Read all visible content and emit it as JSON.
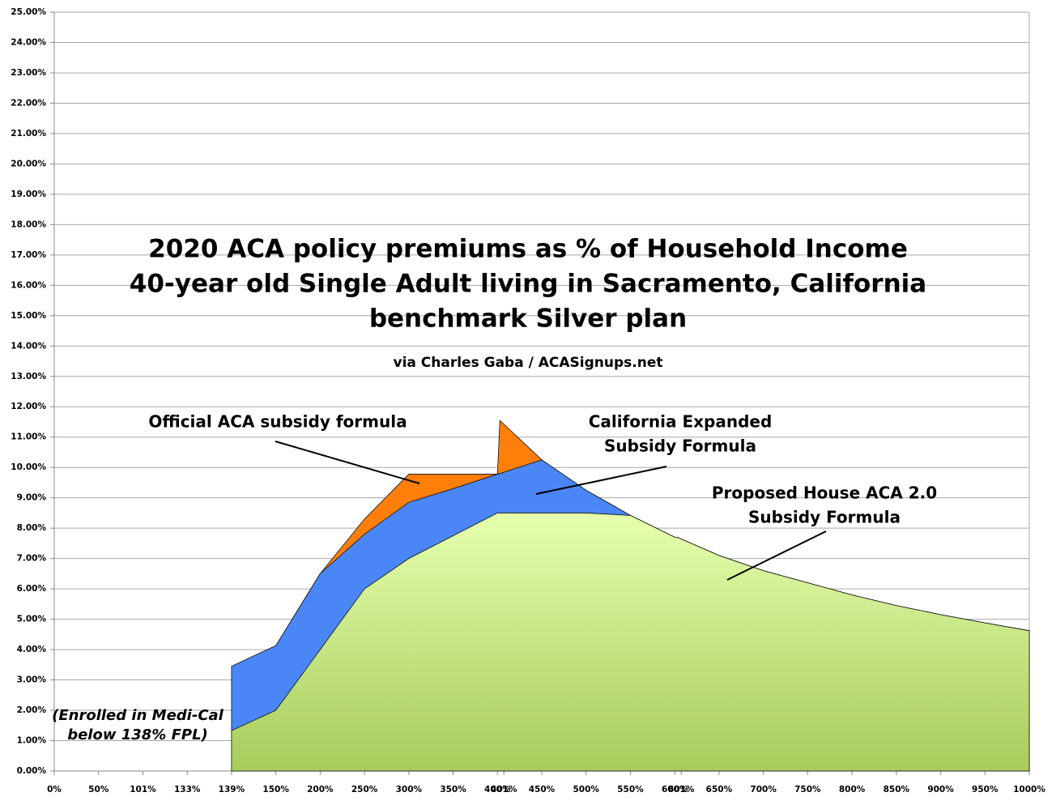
{
  "chart_data": {
    "type": "area",
    "title": [
      "2020 ACA policy premiums as % of Household Income",
      "40-year old Single Adult living in Sacramento, California",
      "benchmark Silver plan"
    ],
    "subtitle": "via Charles Gaba / ACASignups.net",
    "categories": [
      "0%",
      "50%",
      "101%",
      "133%",
      "139%",
      "150%",
      "200%",
      "250%",
      "300%",
      "350%",
      "400%",
      "401%",
      "450%",
      "500%",
      "550%",
      "600%",
      "601%",
      "650%",
      "700%",
      "750%",
      "800%",
      "850%",
      "900%",
      "950%",
      "1000%"
    ],
    "series": [
      {
        "name_lines": [
          "Official ACA subsidy formula"
        ],
        "color": "#ff7f0a",
        "values": [
          null,
          null,
          null,
          null,
          3.45,
          4.13,
          6.5,
          8.3,
          9.78,
          9.78,
          9.78,
          11.55,
          10.25,
          9.25,
          8.42,
          7.7,
          7.7,
          7.1,
          6.6,
          6.2,
          5.8,
          5.45,
          5.15,
          4.88,
          4.62
        ]
      },
      {
        "name_lines": [
          "California Expanded",
          "Subsidy Formula"
        ],
        "color": "#4a86f5",
        "values": [
          null,
          null,
          null,
          null,
          3.45,
          4.13,
          6.5,
          7.8,
          8.85,
          9.3,
          9.78,
          9.8,
          10.25,
          9.25,
          8.42,
          7.7,
          7.7,
          7.1,
          6.6,
          6.2,
          5.8,
          5.45,
          5.15,
          4.88,
          4.62
        ]
      },
      {
        "name_lines": [
          "Proposed House ACA 2.0",
          "Subsidy Formula"
        ],
        "color": "#b8dc72",
        "values": [
          null,
          null,
          null,
          null,
          1.33,
          2.0,
          4.0,
          6.0,
          7.0,
          7.75,
          8.5,
          8.5,
          8.5,
          8.5,
          8.42,
          7.7,
          7.7,
          7.1,
          6.6,
          6.2,
          5.8,
          5.45,
          5.15,
          4.88,
          4.62
        ]
      }
    ],
    "note_lines": [
      "(Enrolled in Medi-Cal",
      "below 138% FPL)"
    ],
    "ylim": [
      0,
      25
    ],
    "yticks": [
      {
        "value": 0,
        "label": "0.00%"
      },
      {
        "value": 1,
        "label": "1.00%"
      },
      {
        "value": 2,
        "label": "2.00%"
      },
      {
        "value": 3,
        "label": "3.00%"
      },
      {
        "value": 4,
        "label": "4.00%"
      },
      {
        "value": 5,
        "label": "5.00%"
      },
      {
        "value": 6,
        "label": "6.00%"
      },
      {
        "value": 7,
        "label": "7.00%"
      },
      {
        "value": 8,
        "label": "8.00%"
      },
      {
        "value": 9,
        "label": "9.00%"
      },
      {
        "value": 10,
        "label": "10.00%"
      },
      {
        "value": 11,
        "label": "11.00%"
      },
      {
        "value": 12,
        "label": "12.00%"
      },
      {
        "value": 13,
        "label": "13.00%"
      },
      {
        "value": 14,
        "label": "14.00%"
      },
      {
        "value": 15,
        "label": "15.00%"
      },
      {
        "value": 16,
        "label": "16.00%"
      },
      {
        "value": 17,
        "label": "17.00%"
      },
      {
        "value": 18,
        "label": "18.00%"
      },
      {
        "value": 19,
        "label": "19.00%"
      },
      {
        "value": 20,
        "label": "20.00%"
      },
      {
        "value": 21,
        "label": "21.00%"
      },
      {
        "value": 22,
        "label": "22.00%"
      },
      {
        "value": 23,
        "label": "23.00%"
      },
      {
        "value": 24,
        "label": "24.00%"
      },
      {
        "value": 25,
        "label": "25.00%"
      }
    ],
    "grid": true
  }
}
